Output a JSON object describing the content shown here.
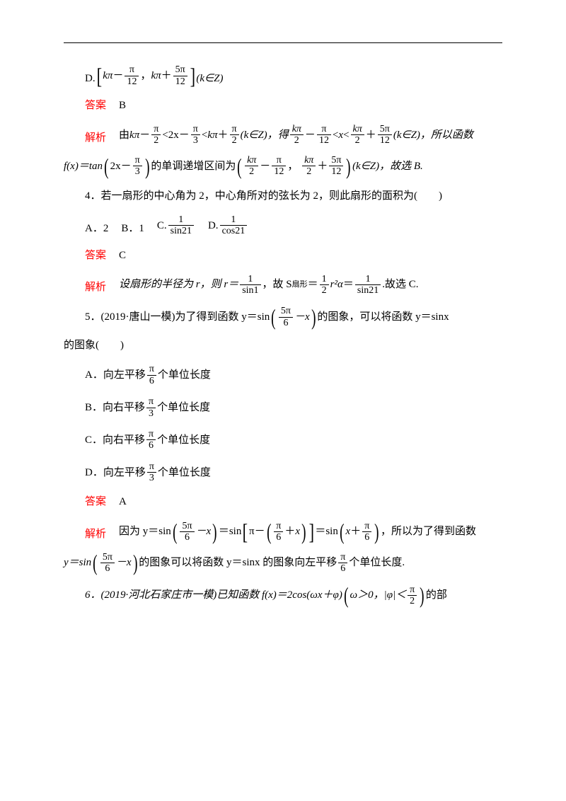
{
  "q3": {
    "optD_prefix": "D.",
    "optD_suffix": "(k∈Z)",
    "frac_pi_12_num": "π",
    "frac_pi_12_den": "12",
    "frac_5pi_12_num": "5π",
    "frac_5pi_12_den": "12",
    "kpi": "kπ",
    "ans_label": "答案",
    "ans": "B",
    "exp_label": "解析",
    "exp_t1": "由 ",
    "exp_t2": "kπ",
    "minus": "－",
    "plus": "＋",
    "pi2_num": "π",
    "pi2_den": "2",
    "lt": "<",
    "expr_2x": "2x",
    "pi3_num": "π",
    "pi3_den": "3",
    "exp_t3": "(k∈Z)，得",
    "kpi2_num": "kπ",
    "kpi2_den": "2",
    "pi12_num": "π",
    "pi12_den": "12",
    "x": "x",
    "fivepi12_num": "5π",
    "fivepi12_den": "12",
    "exp_t4": "(k∈Z)，所以函数",
    "exp_line2_a": "f(x)＝tan",
    "exp_line2_b": "的单调递增区间为",
    "exp_line2_c": "(k∈Z)，故选 B.",
    "comma": "，"
  },
  "q4": {
    "stem": "4．若一扇形的中心角为 2，中心角所对的弦长为 2，则此扇形的面积为(　　)",
    "optA": "A．2",
    "optB": "B．1",
    "optC_prefix": "C.",
    "optD_prefix": "D.",
    "one": "1",
    "sin21": "sin21",
    "cos21": "cos21",
    "ans_label": "答案",
    "ans": "C",
    "exp_label": "解析",
    "exp_t1": "设扇形的半径为 r，则 r＝",
    "sin1": "sin1",
    "exp_t2": "，故 S",
    "sector": "扇形",
    "eq": "＝",
    "half_num": "1",
    "half_den": "2",
    "r2a": "r²α",
    "exp_t3": "＝",
    "exp_t4": ".故选 C."
  },
  "q5": {
    "stem_a": "5．(2019·唐山一模)为了得到函数 y＝sin",
    "fivepi6_num": "5π",
    "fivepi6_den": "6",
    "minus_x": "－x",
    "stem_b": "的图象，可以将函数 y＝sinx",
    "stem_c": "的图象(　　)",
    "A_a": "A．向左平移",
    "A_b": "个单位长度",
    "B_a": "B．向右平移",
    "B_b": "个单位长度",
    "C_a": "C．向右平移",
    "C_b": "个单位长度",
    "D_a": "D．向左平移",
    "D_b": "个单位长度",
    "pi6_num": "π",
    "pi6_den": "6",
    "pi3_num": "π",
    "pi3_den": "3",
    "ans_label": "答案",
    "ans": "A",
    "exp_label": "解析",
    "exp_t1": "因为 y＝sin",
    "exp_t2": "＝sin",
    "pi": "π",
    "minus": "－",
    "plus": "＋",
    "x": "x",
    "exp_t3": "＝sin",
    "exp_t4": "，所以为了得到函数",
    "exp2_a": "y＝sin",
    "exp2_b": "的图象可以将函数 y＝sinx 的图象向左平移",
    "exp2_c": "个单位长度."
  },
  "q6": {
    "stem_a": "6．(2019·河北石家庄市一模)已知函数 f(x)＝2cos(ωx＋φ)",
    "cond_a": "ω＞0，|φ|＜",
    "pi2_num": "π",
    "pi2_den": "2",
    "stem_b": "的部"
  }
}
